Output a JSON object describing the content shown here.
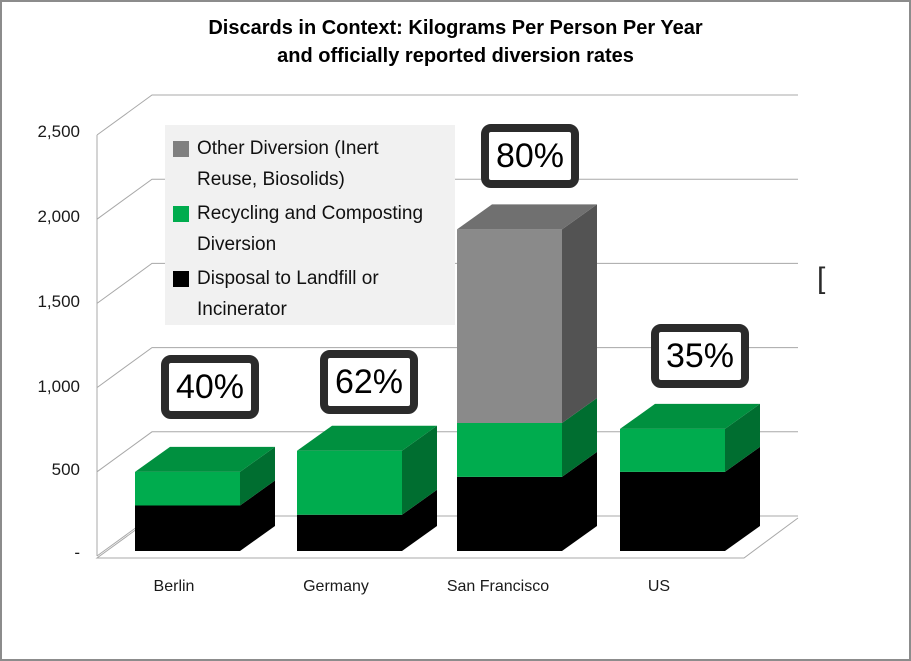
{
  "title": {
    "line1": "Discards in Context: Kilograms Per Person Per Year",
    "line2": "and officially reported diversion rates"
  },
  "axis": {
    "ticks": [
      "2,500",
      "2,000",
      "1,500",
      "1,000",
      "500",
      "-"
    ]
  },
  "legend": {
    "items": [
      {
        "line1": "Other Diversion (Inert",
        "line2": "Reuse, Biosolids)",
        "color": "#808080"
      },
      {
        "line1": "Recycling and Composting",
        "line2": "Diversion",
        "color": "#00AC4E"
      },
      {
        "line1": "Disposal to Landfill or",
        "line2": "Incinerator",
        "color": "#000000"
      }
    ]
  },
  "artifact": {
    "glyph": "["
  },
  "chart_data": {
    "type": "bar",
    "stacked": true,
    "effect": "3d",
    "title": "Discards in Context: Kilograms Per Person Per Year and officially reported diversion rates",
    "categories": [
      "Berlin",
      "Germany",
      "San Francisco",
      "US"
    ],
    "series": [
      {
        "name": "Disposal to Landfill or Incinerator",
        "values": [
          270,
          215,
          440,
          470
        ],
        "colors": {
          "front": "#000000",
          "top": "#111111",
          "side": "#000000"
        }
      },
      {
        "name": "Recycling and Composting Diversion",
        "values": [
          200,
          380,
          320,
          255
        ],
        "colors": {
          "front": "#00AC4E",
          "top": "#00903F",
          "side": "#006E30"
        }
      },
      {
        "name": "Other Diversion (Inert Reuse, Biosolids)",
        "values": [
          0,
          0,
          1150,
          0
        ],
        "colors": {
          "front": "#8A8A8A",
          "top": "#707070",
          "side": "#535353"
        }
      }
    ],
    "diversion_rates": [
      "40%",
      "62%",
      "80%",
      "35%"
    ],
    "ylabel": "",
    "xlabel": "",
    "ylim": [
      0,
      2500
    ],
    "ytick_step": 500,
    "grid": true,
    "legend_position": "upper-left-inside",
    "grid_color": "#A8A8A8"
  }
}
